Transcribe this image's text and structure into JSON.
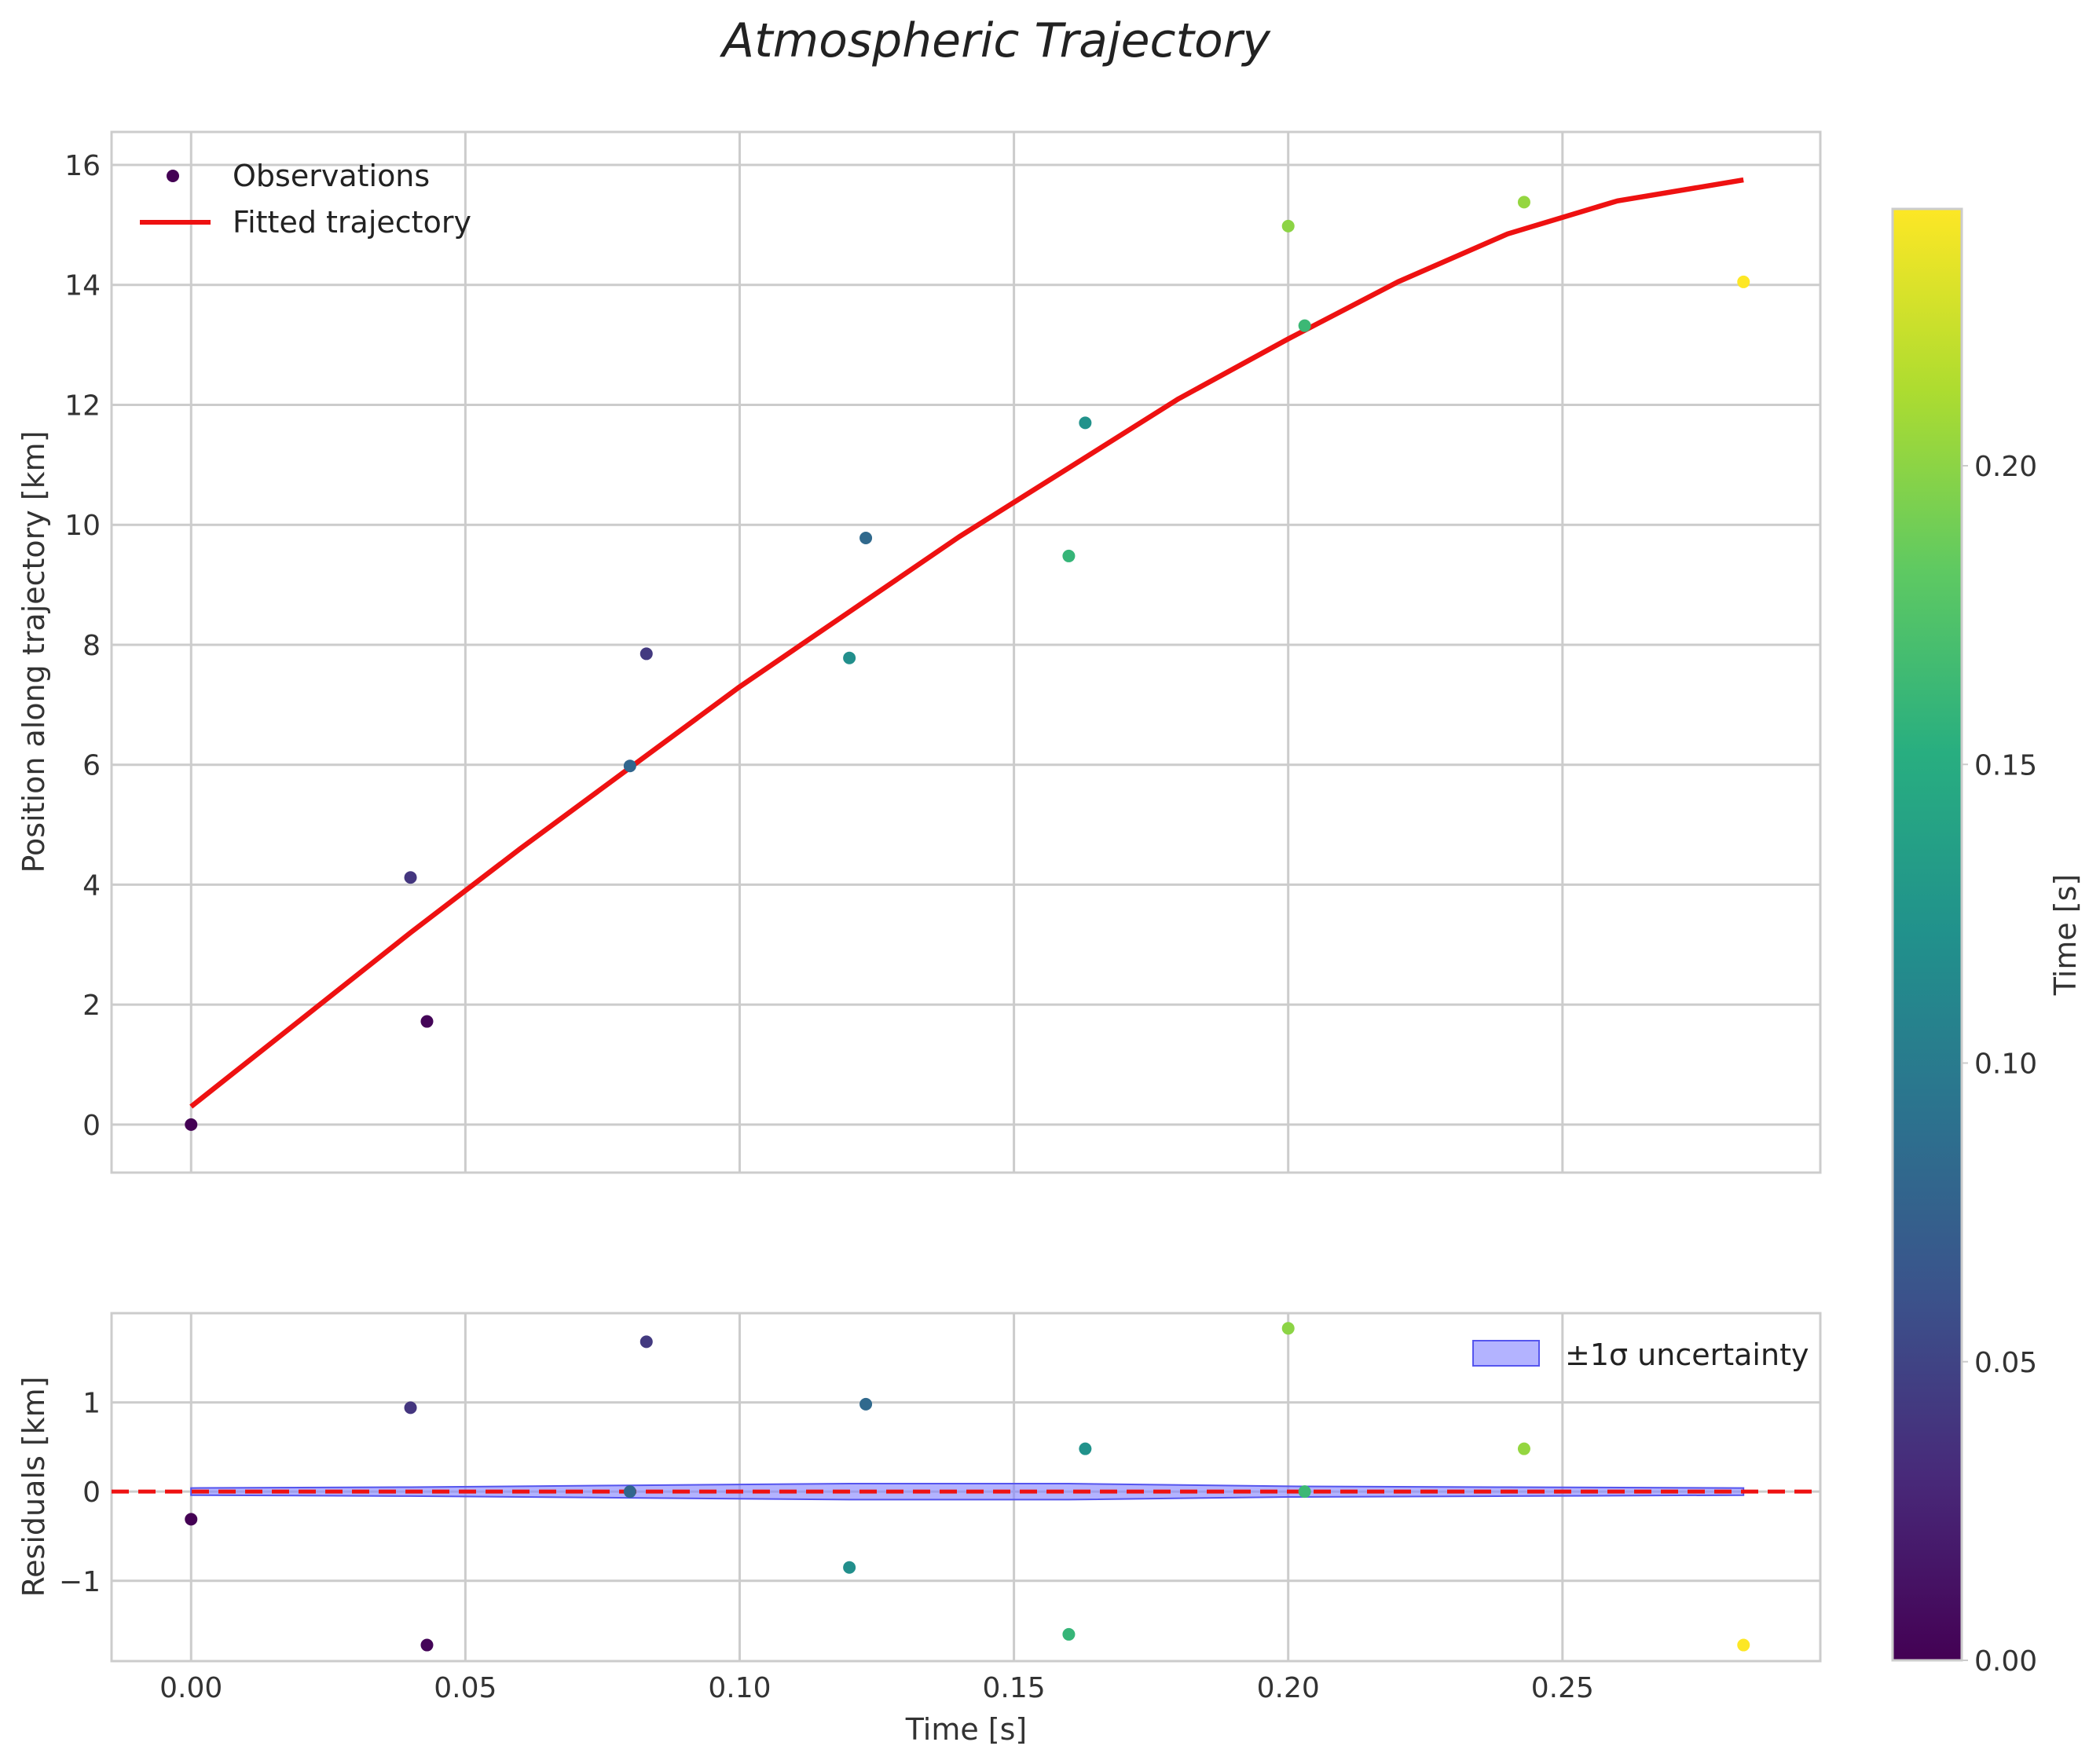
{
  "chart_data": {
    "title": "Atmospheric Trajectory",
    "shared_x": {
      "label": "Time [s]",
      "lim": [
        -0.0145,
        0.297
      ],
      "ticks": [
        0.0,
        0.05,
        0.1,
        0.15,
        0.2,
        0.25
      ],
      "tick_labels": [
        "0.00",
        "0.05",
        "0.10",
        "0.15",
        "0.20",
        "0.25"
      ]
    },
    "top_panel": {
      "type": "scatter+line",
      "ylabel": "Position along trajectory [km]",
      "ylim": [
        -0.8,
        16.55
      ],
      "yticks": [
        0,
        2,
        4,
        6,
        8,
        10,
        12,
        14,
        16
      ],
      "ytick_labels": [
        "0",
        "2",
        "4",
        "6",
        "8",
        "10",
        "12",
        "14",
        "16"
      ],
      "grid": true,
      "legend_position": "top-left",
      "legend": [
        "Observations",
        "Fitted trajectory"
      ],
      "observations": {
        "name": "Observations",
        "x": [
          0.0,
          0.04,
          0.043,
          0.08,
          0.083,
          0.12,
          0.123,
          0.16,
          0.163,
          0.2,
          0.203,
          0.243,
          0.283
        ],
        "y": [
          0.0,
          4.12,
          1.72,
          5.98,
          7.85,
          7.78,
          9.78,
          9.48,
          11.7,
          14.98,
          13.32,
          15.38,
          14.05
        ],
        "color_value": [
          0.0,
          0.04,
          0.003,
          0.08,
          0.043,
          0.12,
          0.083,
          0.16,
          0.123,
          0.2,
          0.163,
          0.203,
          0.243
        ]
      },
      "fit": {
        "name": "Fitted trajectory",
        "color": "#ee1111",
        "x": [
          0.0,
          0.02,
          0.04,
          0.06,
          0.08,
          0.1,
          0.12,
          0.14,
          0.16,
          0.18,
          0.2,
          0.22,
          0.24,
          0.26,
          0.283
        ],
        "y": [
          0.3,
          1.75,
          3.2,
          4.6,
          5.95,
          7.3,
          8.55,
          9.8,
          10.95,
          12.1,
          13.1,
          14.05,
          14.85,
          15.4,
          15.75
        ]
      }
    },
    "bottom_panel": {
      "type": "scatter",
      "ylabel": "Residuals [km]",
      "ylim": [
        -1.9,
        2.0
      ],
      "yticks": [
        -1,
        0,
        1
      ],
      "ytick_labels": [
        "−1",
        "0",
        "1"
      ],
      "grid": true,
      "legend_position": "top-right",
      "legend": [
        "±1σ uncertainty"
      ],
      "zero_line_color": "#ee1111",
      "band_color": "#8080ff",
      "band": {
        "x": [
          0.0,
          0.04,
          0.08,
          0.12,
          0.16,
          0.2,
          0.24,
          0.283
        ],
        "sigma": [
          0.04,
          0.05,
          0.07,
          0.09,
          0.09,
          0.06,
          0.05,
          0.04
        ]
      },
      "residuals": {
        "x": [
          0.0,
          0.04,
          0.043,
          0.08,
          0.083,
          0.12,
          0.123,
          0.16,
          0.163,
          0.2,
          0.203,
          0.243,
          0.283
        ],
        "y": [
          -0.31,
          0.94,
          -1.72,
          0.0,
          1.68,
          -0.85,
          0.98,
          -1.6,
          0.48,
          1.83,
          0.0,
          0.48,
          -1.72
        ],
        "color_value": [
          0.0,
          0.04,
          0.003,
          0.08,
          0.043,
          0.12,
          0.083,
          0.16,
          0.123,
          0.2,
          0.163,
          0.203,
          0.243
        ]
      }
    },
    "colorbar": {
      "label": "Time [s]",
      "colormap": "viridis",
      "lim": [
        0.0,
        0.243
      ],
      "ticks": [
        0.0,
        0.05,
        0.1,
        0.15,
        0.2
      ],
      "tick_labels": [
        "0.00",
        "0.05",
        "0.10",
        "0.15",
        "0.20"
      ]
    }
  }
}
